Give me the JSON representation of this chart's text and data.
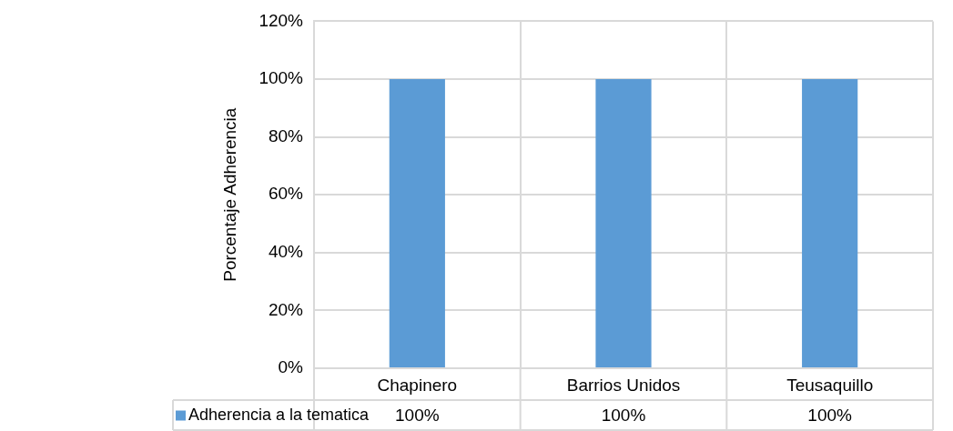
{
  "chart_data": {
    "type": "bar",
    "ylabel": "Porcentaje Adherencia",
    "categories": [
      "Chapinero",
      "Barrios Unidos",
      "Teusaquillo"
    ],
    "series": [
      {
        "name": "Adherencia a la tematica",
        "color": "#5b9bd5",
        "values": [
          100,
          100,
          100
        ],
        "value_labels": [
          "100%",
          "100%",
          "100%"
        ]
      }
    ],
    "ylim": [
      0,
      120
    ],
    "yticks": [
      {
        "value": 0,
        "label": "0%"
      },
      {
        "value": 20,
        "label": "20%"
      },
      {
        "value": 40,
        "label": "40%"
      },
      {
        "value": 60,
        "label": "60%"
      },
      {
        "value": 80,
        "label": "80%"
      },
      {
        "value": 100,
        "label": "100%"
      },
      {
        "value": 120,
        "label": "120%"
      }
    ],
    "grid": true,
    "legend": "bottom"
  }
}
